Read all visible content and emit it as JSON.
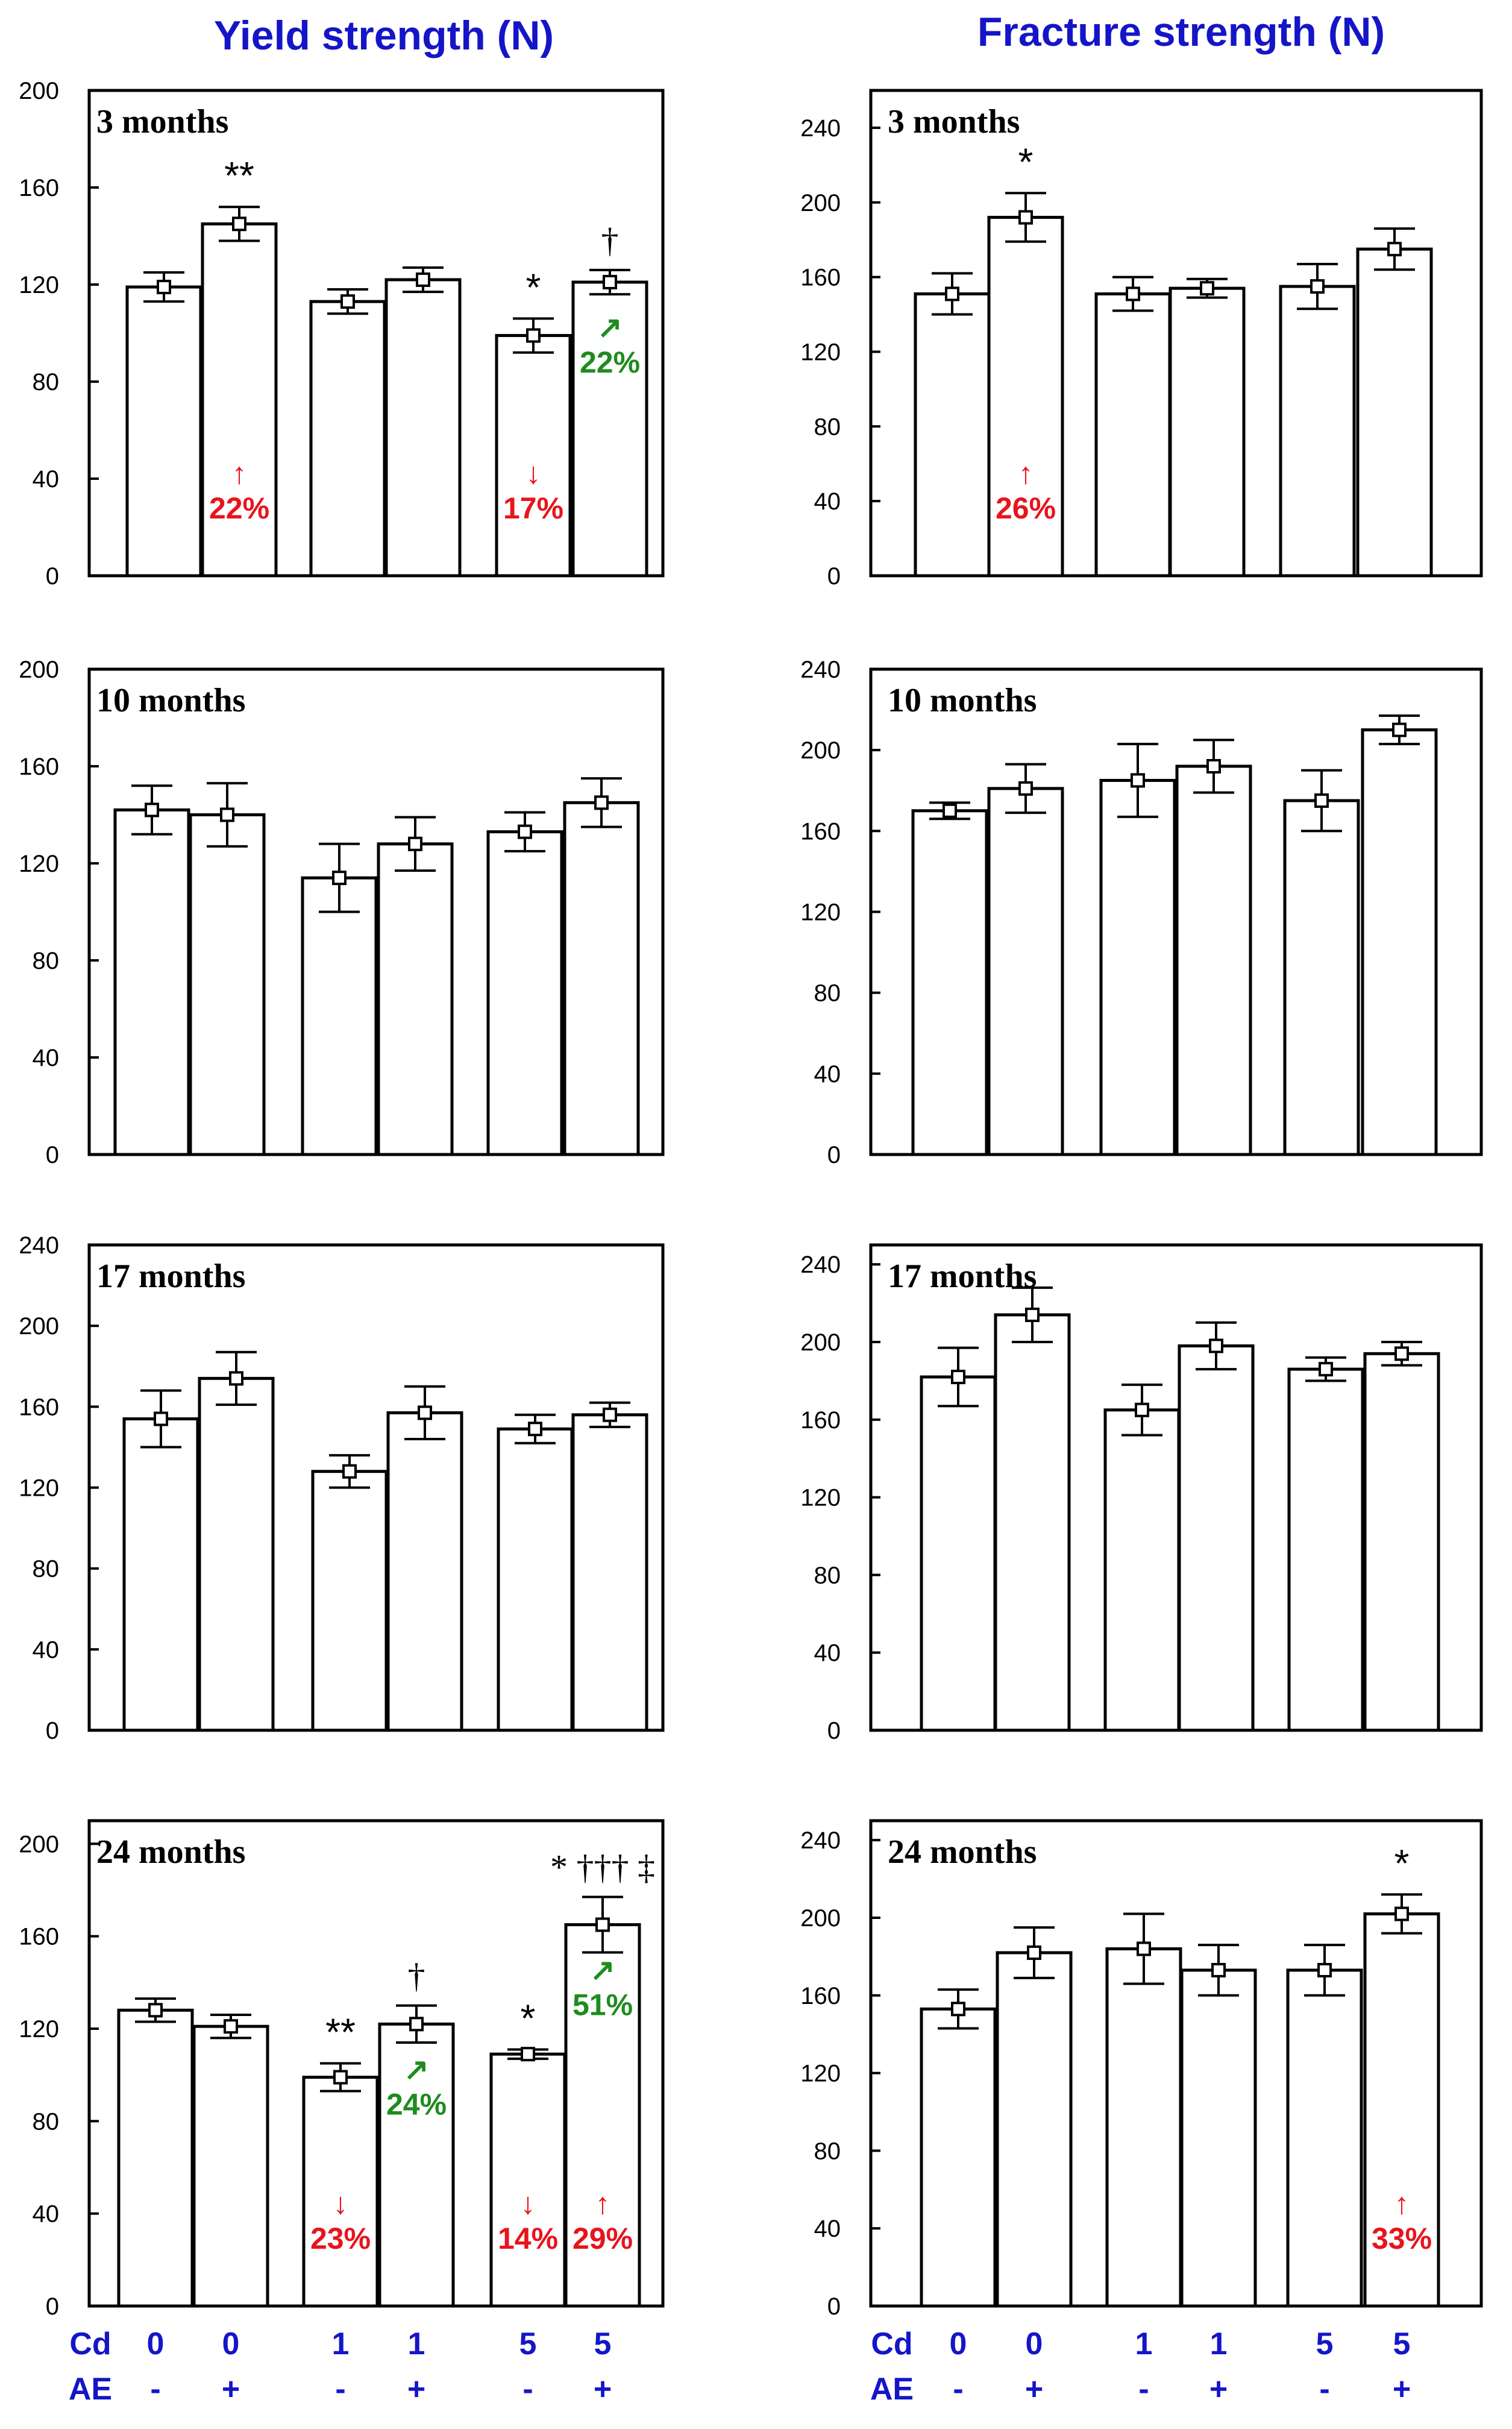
{
  "titles": {
    "left": "Yield strength  (N)",
    "right": "Fracture strength (N)"
  },
  "colors": {
    "title": "#1515c8",
    "decrease": "#e8141c",
    "increase_vs_cd": "#1e8c1e",
    "axis": "#000000"
  },
  "x_labels": {
    "rows": [
      {
        "name": "Cd",
        "values": [
          "0",
          "0",
          "1",
          "1",
          "5",
          "5"
        ]
      },
      {
        "name": "AE",
        "values": [
          "-",
          "+",
          "-",
          "+",
          "-",
          "+"
        ]
      }
    ]
  },
  "chart_data": [
    {
      "type": "bar",
      "column": "left",
      "panel_label": "3 months",
      "ylim": [
        0,
        200
      ],
      "yticks": [
        "0",
        "40",
        "80",
        "120",
        "160",
        "200"
      ],
      "categories": [
        "Cd0 AE-",
        "Cd0 AE+",
        "Cd1 AE-",
        "Cd1 AE+",
        "Cd5 AE-",
        "Cd5 AE+"
      ],
      "values": [
        119,
        145,
        113,
        122,
        99,
        121
      ],
      "errors": [
        6,
        7,
        5,
        5,
        7,
        5
      ],
      "significance": [
        "",
        "**",
        "",
        "",
        "*",
        "†"
      ],
      "annotations": [
        {
          "bar": 1,
          "arrow": "↑",
          "text": "22%",
          "color": "#e8141c"
        },
        {
          "bar": 4,
          "arrow": "↓",
          "text": "17%",
          "color": "#e8141c"
        },
        {
          "bar": 5,
          "arrow": "↗",
          "text": "22%",
          "color": "#1e8c1e"
        }
      ]
    },
    {
      "type": "bar",
      "column": "right",
      "panel_label": "3 months",
      "ylim": [
        0,
        260
      ],
      "yticks": [
        "0",
        "40",
        "80",
        "120",
        "160",
        "200",
        "240"
      ],
      "categories": [
        "Cd0 AE-",
        "Cd0 AE+",
        "Cd1 AE-",
        "Cd1 AE+",
        "Cd5 AE-",
        "Cd5 AE+"
      ],
      "values": [
        151,
        192,
        151,
        154,
        155,
        175
      ],
      "errors": [
        11,
        13,
        9,
        5,
        12,
        11
      ],
      "significance": [
        "",
        "*",
        "",
        "",
        "",
        ""
      ],
      "annotations": [
        {
          "bar": 1,
          "arrow": "↑",
          "text": "26%",
          "color": "#e8141c"
        }
      ]
    },
    {
      "type": "bar",
      "column": "left",
      "panel_label": "10 months",
      "ylim": [
        0,
        200
      ],
      "yticks": [
        "0",
        "40",
        "80",
        "120",
        "160",
        "200"
      ],
      "categories": [
        "Cd0 AE-",
        "Cd0 AE+",
        "Cd1 AE-",
        "Cd1 AE+",
        "Cd5 AE-",
        "Cd5 AE+"
      ],
      "values": [
        142,
        140,
        114,
        128,
        133,
        145
      ],
      "errors": [
        10,
        13,
        14,
        11,
        8,
        10
      ],
      "significance": [
        "",
        "",
        "",
        "",
        "",
        ""
      ],
      "annotations": []
    },
    {
      "type": "bar",
      "column": "right",
      "panel_label": "10 months",
      "ylim": [
        0,
        240
      ],
      "yticks": [
        "0",
        "40",
        "80",
        "120",
        "160",
        "200",
        "240"
      ],
      "categories": [
        "Cd0 AE-",
        "Cd0 AE+",
        "Cd1 AE-",
        "Cd1 AE+",
        "Cd5 AE-",
        "Cd5 AE+"
      ],
      "values": [
        170,
        181,
        185,
        192,
        175,
        210
      ],
      "errors": [
        4,
        12,
        18,
        13,
        15,
        7
      ],
      "significance": [
        "",
        "",
        "",
        "",
        "",
        ""
      ],
      "annotations": []
    },
    {
      "type": "bar",
      "column": "left",
      "panel_label": "17 months",
      "ylim": [
        0,
        240
      ],
      "yticks": [
        "0",
        "40",
        "80",
        "120",
        "160",
        "200",
        "240"
      ],
      "categories": [
        "Cd0 AE-",
        "Cd0 AE+",
        "Cd1 AE-",
        "Cd1 AE+",
        "Cd5 AE-",
        "Cd5 AE+"
      ],
      "values": [
        154,
        174,
        128,
        157,
        149,
        156
      ],
      "errors": [
        14,
        13,
        8,
        13,
        7,
        6
      ],
      "significance": [
        "",
        "",
        "",
        "",
        "",
        ""
      ],
      "annotations": []
    },
    {
      "type": "bar",
      "column": "right",
      "panel_label": "17 months",
      "ylim": [
        0,
        250
      ],
      "yticks": [
        "0",
        "40",
        "80",
        "120",
        "160",
        "200",
        "240"
      ],
      "categories": [
        "Cd0 AE-",
        "Cd0 AE+",
        "Cd1 AE-",
        "Cd1 AE+",
        "Cd5 AE-",
        "Cd5 AE+"
      ],
      "values": [
        182,
        214,
        165,
        198,
        186,
        194
      ],
      "errors": [
        15,
        14,
        13,
        12,
        6,
        6
      ],
      "significance": [
        "",
        "",
        "",
        "",
        "",
        ""
      ],
      "annotations": []
    },
    {
      "type": "bar",
      "column": "left",
      "panel_label": "24 months",
      "ylim": [
        0,
        210
      ],
      "yticks": [
        "0",
        "40",
        "80",
        "120",
        "160",
        "200"
      ],
      "categories": [
        "Cd0 AE-",
        "Cd0 AE+",
        "Cd1 AE-",
        "Cd1 AE+",
        "Cd5 AE-",
        "Cd5 AE+"
      ],
      "values": [
        128,
        121,
        99,
        122,
        109,
        165
      ],
      "errors": [
        5,
        5,
        6,
        8,
        2,
        12
      ],
      "significance": [
        "",
        "",
        "**",
        "†",
        "*",
        "* ††† ‡"
      ],
      "annotations": [
        {
          "bar": 2,
          "arrow": "↓",
          "text": "23%",
          "color": "#e8141c"
        },
        {
          "bar": 3,
          "arrow": "↗",
          "text": "24%",
          "color": "#1e8c1e"
        },
        {
          "bar": 4,
          "arrow": "↓",
          "text": "14%",
          "color": "#e8141c"
        },
        {
          "bar": 5,
          "arrow": "↑",
          "text": "29%",
          "color": "#e8141c"
        },
        {
          "bar": 5,
          "arrow": "↗",
          "text": "51%",
          "color": "#1e8c1e"
        }
      ]
    },
    {
      "type": "bar",
      "column": "right",
      "panel_label": "24 months",
      "ylim": [
        0,
        250
      ],
      "yticks": [
        "0",
        "40",
        "80",
        "120",
        "160",
        "200",
        "240"
      ],
      "categories": [
        "Cd0 AE-",
        "Cd0 AE+",
        "Cd1 AE-",
        "Cd1 AE+",
        "Cd5 AE-",
        "Cd5 AE+"
      ],
      "values": [
        153,
        182,
        184,
        173,
        173,
        202
      ],
      "errors": [
        10,
        13,
        18,
        13,
        13,
        10
      ],
      "significance": [
        "",
        "",
        "",
        "",
        "",
        "*"
      ],
      "annotations": [
        {
          "bar": 5,
          "arrow": "↑",
          "text": "33%",
          "color": "#e8141c"
        }
      ]
    }
  ]
}
